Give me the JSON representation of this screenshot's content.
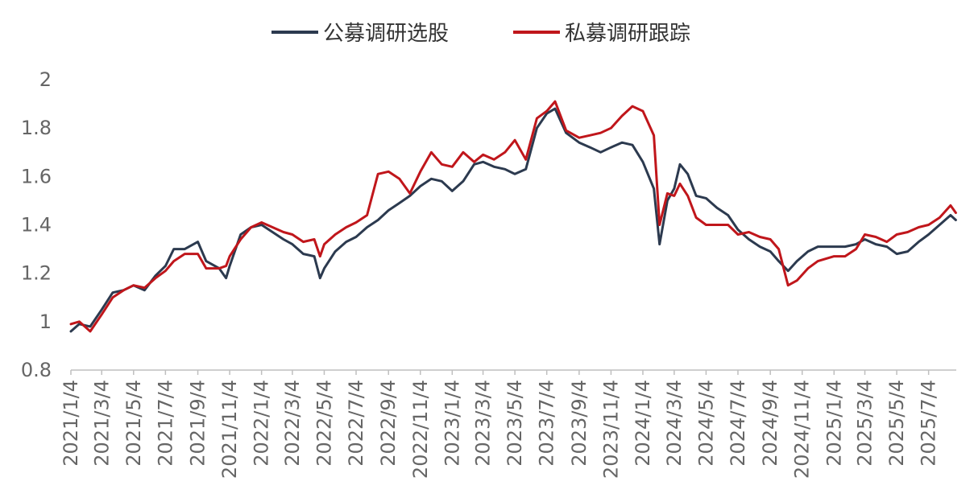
{
  "chart_data": {
    "type": "line",
    "title": "",
    "xlabel": "",
    "ylabel": "",
    "ylim": [
      0.8,
      2.0
    ],
    "yticks": [
      "0.8",
      "1",
      "1.2",
      "1.4",
      "1.6",
      "1.8",
      "2"
    ],
    "xticks": [
      "2021/1/4",
      "2021/3/4",
      "2021/5/4",
      "2021/7/4",
      "2021/9/4",
      "2021/11/4",
      "2022/1/4",
      "2022/3/4",
      "2022/5/4",
      "2022/7/4",
      "2022/9/4",
      "2022/11/4",
      "2023/1/4",
      "2023/3/4",
      "2023/5/4",
      "2023/7/4",
      "2023/9/4",
      "2023/11/4",
      "2024/1/4",
      "2024/3/4",
      "2024/5/4",
      "2024/7/4",
      "2024/9/4",
      "2024/11/4",
      "2025/1/4",
      "2025/3/4",
      "2025/5/4",
      "2025/7/4"
    ],
    "grid": false,
    "legend": "top-center",
    "series": [
      {
        "name": "公募调研选股",
        "color": "#2c3a4f",
        "points": [
          [
            "2021/1/4",
            0.96
          ],
          [
            "2021/1/20",
            0.99
          ],
          [
            "2021/2/10",
            0.98
          ],
          [
            "2021/3/4",
            1.05
          ],
          [
            "2021/3/25",
            1.12
          ],
          [
            "2021/4/15",
            1.13
          ],
          [
            "2021/5/4",
            1.15
          ],
          [
            "2021/5/25",
            1.13
          ],
          [
            "2021/6/15",
            1.19
          ],
          [
            "2021/7/4",
            1.23
          ],
          [
            "2021/7/20",
            1.3
          ],
          [
            "2021/8/10",
            1.3
          ],
          [
            "2021/9/4",
            1.33
          ],
          [
            "2021/9/20",
            1.25
          ],
          [
            "2021/10/15",
            1.22
          ],
          [
            "2021/10/28",
            1.18
          ],
          [
            "2021/11/4",
            1.23
          ],
          [
            "2021/11/25",
            1.36
          ],
          [
            "2021/12/15",
            1.39
          ],
          [
            "2022/1/4",
            1.4
          ],
          [
            "2022/1/25",
            1.37
          ],
          [
            "2022/2/15",
            1.34
          ],
          [
            "2022/3/4",
            1.32
          ],
          [
            "2022/3/25",
            1.28
          ],
          [
            "2022/4/15",
            1.27
          ],
          [
            "2022/4/26",
            1.18
          ],
          [
            "2022/5/4",
            1.22
          ],
          [
            "2022/5/25",
            1.29
          ],
          [
            "2022/6/15",
            1.33
          ],
          [
            "2022/7/4",
            1.35
          ],
          [
            "2022/7/25",
            1.39
          ],
          [
            "2022/8/15",
            1.42
          ],
          [
            "2022/9/4",
            1.46
          ],
          [
            "2022/9/25",
            1.49
          ],
          [
            "2022/10/15",
            1.52
          ],
          [
            "2022/11/4",
            1.56
          ],
          [
            "2022/11/25",
            1.59
          ],
          [
            "2022/12/15",
            1.58
          ],
          [
            "2023/1/4",
            1.54
          ],
          [
            "2023/1/25",
            1.58
          ],
          [
            "2023/2/15",
            1.65
          ],
          [
            "2023/3/4",
            1.66
          ],
          [
            "2023/3/25",
            1.64
          ],
          [
            "2023/4/15",
            1.63
          ],
          [
            "2023/5/4",
            1.61
          ],
          [
            "2023/5/25",
            1.63
          ],
          [
            "2023/6/15",
            1.8
          ],
          [
            "2023/7/4",
            1.86
          ],
          [
            "2023/7/20",
            1.88
          ],
          [
            "2023/8/10",
            1.78
          ],
          [
            "2023/9/4",
            1.74
          ],
          [
            "2023/9/25",
            1.72
          ],
          [
            "2023/10/15",
            1.7
          ],
          [
            "2023/11/4",
            1.72
          ],
          [
            "2023/11/25",
            1.74
          ],
          [
            "2023/12/15",
            1.73
          ],
          [
            "2024/1/4",
            1.66
          ],
          [
            "2024/1/25",
            1.55
          ],
          [
            "2024/2/5",
            1.32
          ],
          [
            "2024/2/20",
            1.5
          ],
          [
            "2024/3/4",
            1.55
          ],
          [
            "2024/3/15",
            1.65
          ],
          [
            "2024/3/30",
            1.61
          ],
          [
            "2024/4/15",
            1.52
          ],
          [
            "2024/5/4",
            1.51
          ],
          [
            "2024/5/25",
            1.47
          ],
          [
            "2024/6/15",
            1.44
          ],
          [
            "2024/7/4",
            1.38
          ],
          [
            "2024/7/25",
            1.34
          ],
          [
            "2024/8/15",
            1.31
          ],
          [
            "2024/9/4",
            1.29
          ],
          [
            "2024/9/20",
            1.25
          ],
          [
            "2024/10/8",
            1.21
          ],
          [
            "2024/10/25",
            1.25
          ],
          [
            "2024/11/15",
            1.29
          ],
          [
            "2024/12/4",
            1.31
          ],
          [
            "2025/1/4",
            1.31
          ],
          [
            "2025/1/25",
            1.31
          ],
          [
            "2025/2/15",
            1.32
          ],
          [
            "2025/3/4",
            1.34
          ],
          [
            "2025/3/25",
            1.32
          ],
          [
            "2025/4/15",
            1.31
          ],
          [
            "2025/5/4",
            1.28
          ],
          [
            "2025/5/25",
            1.29
          ],
          [
            "2025/6/15",
            1.33
          ],
          [
            "2025/7/4",
            1.36
          ],
          [
            "2025/7/25",
            1.4
          ],
          [
            "2025/8/15",
            1.44
          ],
          [
            "2025/8/25",
            1.42
          ]
        ]
      },
      {
        "name": "私募调研跟踪",
        "color": "#c0161b",
        "points": [
          [
            "2021/1/4",
            0.99
          ],
          [
            "2021/1/20",
            1.0
          ],
          [
            "2021/2/10",
            0.96
          ],
          [
            "2021/3/4",
            1.03
          ],
          [
            "2021/3/25",
            1.1
          ],
          [
            "2021/4/15",
            1.13
          ],
          [
            "2021/5/4",
            1.15
          ],
          [
            "2021/5/25",
            1.14
          ],
          [
            "2021/6/15",
            1.18
          ],
          [
            "2021/7/4",
            1.21
          ],
          [
            "2021/7/20",
            1.25
          ],
          [
            "2021/8/10",
            1.28
          ],
          [
            "2021/9/4",
            1.28
          ],
          [
            "2021/9/20",
            1.22
          ],
          [
            "2021/10/15",
            1.22
          ],
          [
            "2021/10/28",
            1.23
          ],
          [
            "2021/11/4",
            1.27
          ],
          [
            "2021/11/25",
            1.34
          ],
          [
            "2021/12/15",
            1.39
          ],
          [
            "2022/1/4",
            1.41
          ],
          [
            "2022/1/25",
            1.39
          ],
          [
            "2022/2/15",
            1.37
          ],
          [
            "2022/3/4",
            1.36
          ],
          [
            "2022/3/25",
            1.33
          ],
          [
            "2022/4/15",
            1.34
          ],
          [
            "2022/4/26",
            1.27
          ],
          [
            "2022/5/4",
            1.32
          ],
          [
            "2022/5/25",
            1.36
          ],
          [
            "2022/6/15",
            1.39
          ],
          [
            "2022/7/4",
            1.41
          ],
          [
            "2022/7/25",
            1.44
          ],
          [
            "2022/8/15",
            1.61
          ],
          [
            "2022/9/4",
            1.62
          ],
          [
            "2022/9/25",
            1.59
          ],
          [
            "2022/10/15",
            1.53
          ],
          [
            "2022/11/4",
            1.62
          ],
          [
            "2022/11/25",
            1.7
          ],
          [
            "2022/12/15",
            1.65
          ],
          [
            "2023/1/4",
            1.64
          ],
          [
            "2023/1/25",
            1.7
          ],
          [
            "2023/2/15",
            1.66
          ],
          [
            "2023/3/4",
            1.69
          ],
          [
            "2023/3/25",
            1.67
          ],
          [
            "2023/4/15",
            1.7
          ],
          [
            "2023/5/4",
            1.75
          ],
          [
            "2023/5/25",
            1.67
          ],
          [
            "2023/6/15",
            1.84
          ],
          [
            "2023/7/4",
            1.87
          ],
          [
            "2023/7/20",
            1.91
          ],
          [
            "2023/8/10",
            1.79
          ],
          [
            "2023/9/4",
            1.76
          ],
          [
            "2023/9/25",
            1.77
          ],
          [
            "2023/10/15",
            1.78
          ],
          [
            "2023/11/4",
            1.8
          ],
          [
            "2023/11/25",
            1.85
          ],
          [
            "2023/12/15",
            1.89
          ],
          [
            "2024/1/4",
            1.87
          ],
          [
            "2024/1/25",
            1.77
          ],
          [
            "2024/2/5",
            1.4
          ],
          [
            "2024/2/20",
            1.53
          ],
          [
            "2024/3/4",
            1.52
          ],
          [
            "2024/3/15",
            1.57
          ],
          [
            "2024/3/30",
            1.52
          ],
          [
            "2024/4/15",
            1.43
          ],
          [
            "2024/5/4",
            1.4
          ],
          [
            "2024/5/25",
            1.4
          ],
          [
            "2024/6/15",
            1.4
          ],
          [
            "2024/7/4",
            1.36
          ],
          [
            "2024/7/25",
            1.37
          ],
          [
            "2024/8/15",
            1.35
          ],
          [
            "2024/9/4",
            1.34
          ],
          [
            "2024/9/20",
            1.3
          ],
          [
            "2024/10/8",
            1.15
          ],
          [
            "2024/10/25",
            1.17
          ],
          [
            "2024/11/15",
            1.22
          ],
          [
            "2024/12/4",
            1.25
          ],
          [
            "2025/1/4",
            1.27
          ],
          [
            "2025/1/25",
            1.27
          ],
          [
            "2025/2/15",
            1.3
          ],
          [
            "2025/3/4",
            1.36
          ],
          [
            "2025/3/25",
            1.35
          ],
          [
            "2025/4/15",
            1.33
          ],
          [
            "2025/5/4",
            1.36
          ],
          [
            "2025/5/25",
            1.37
          ],
          [
            "2025/6/15",
            1.39
          ],
          [
            "2025/7/4",
            1.4
          ],
          [
            "2025/7/25",
            1.43
          ],
          [
            "2025/8/15",
            1.48
          ],
          [
            "2025/8/25",
            1.45
          ]
        ]
      }
    ]
  }
}
